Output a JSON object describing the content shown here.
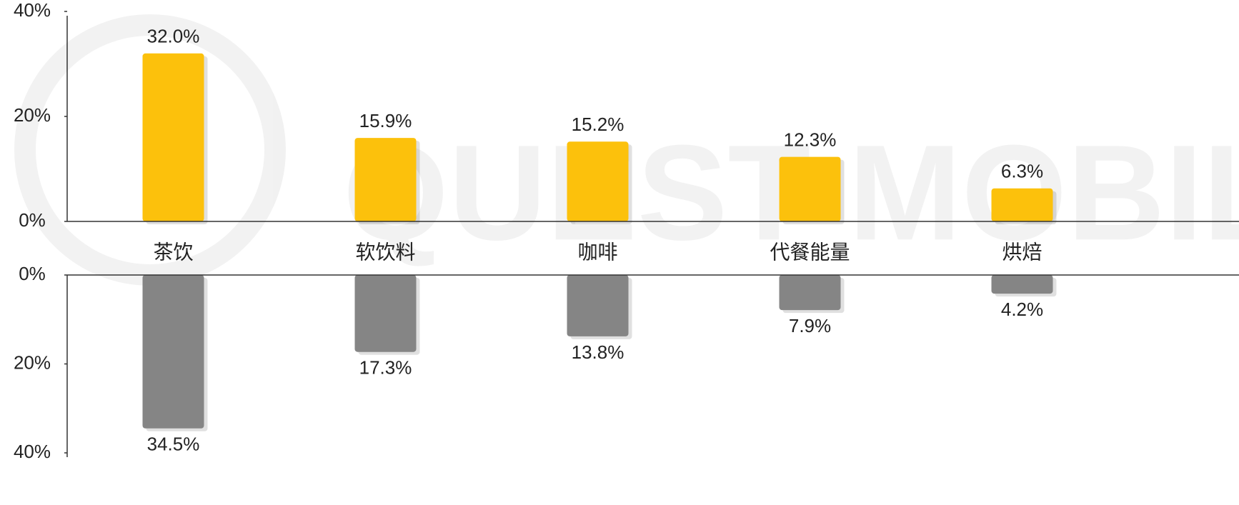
{
  "chart_data": [
    {
      "type": "bar",
      "categories": [
        "茶饮",
        "软饮料",
        "咖啡",
        "代餐能量",
        "烘焙"
      ],
      "values": [
        32.0,
        15.9,
        15.2,
        12.3,
        6.3
      ],
      "value_labels": [
        "32.0%",
        "15.9%",
        "15.2%",
        "12.3%",
        "6.3%"
      ],
      "color": "#fcc10c",
      "ylim": [
        0,
        40
      ],
      "yticks": [
        {
          "value": 0,
          "label": "0%"
        },
        {
          "value": 20,
          "label": "20%"
        },
        {
          "value": 40,
          "label": "40%"
        }
      ]
    },
    {
      "type": "bar",
      "values": [
        34.5,
        17.3,
        13.8,
        7.9,
        4.2
      ],
      "value_labels": [
        "34.5%",
        "17.3%",
        "13.8%",
        "7.9%",
        "4.2%"
      ],
      "color": "#858585",
      "y_inverted": true,
      "ylim": [
        0,
        40
      ],
      "yticks": [
        {
          "value": 0,
          "label": "0%"
        },
        {
          "value": 20,
          "label": "20%"
        },
        {
          "value": 40,
          "label": "40%"
        }
      ]
    }
  ]
}
